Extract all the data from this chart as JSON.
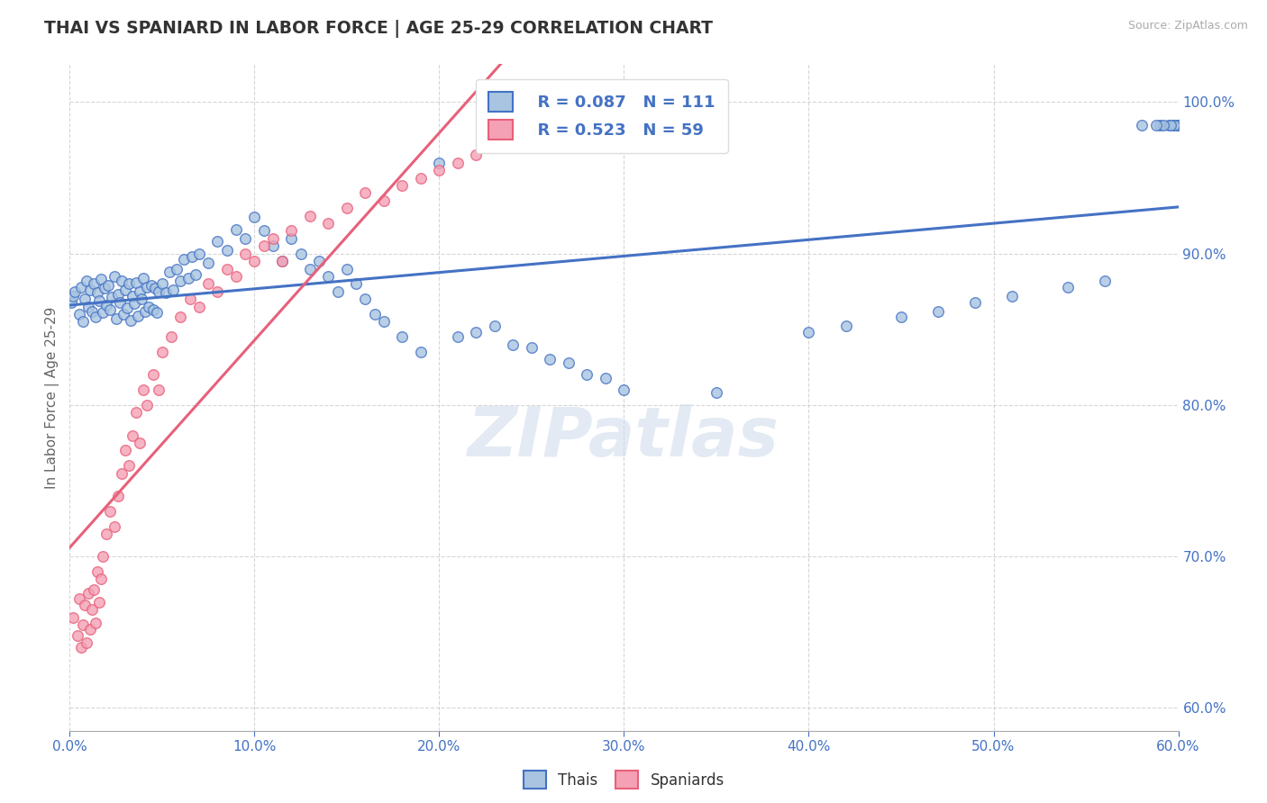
{
  "title": "THAI VS SPANIARD IN LABOR FORCE | AGE 25-29 CORRELATION CHART",
  "source": "Source: ZipAtlas.com",
  "ylabel_label": "In Labor Force | Age 25-29",
  "xmin": 0.0,
  "xmax": 0.6,
  "ymin": 0.585,
  "ymax": 1.025,
  "legend_r1": "R = 0.087",
  "legend_n1": "N = 111",
  "legend_r2": "R = 0.523",
  "legend_n2": "N = 59",
  "legend_label1": "Thais",
  "legend_label2": "Spaniards",
  "color_thai": "#a8c4e0",
  "color_spaniard": "#f4a0b5",
  "color_thai_line": "#4472c4",
  "color_spaniard_line": "#e8607a",
  "color_text_blue": "#4472c4",
  "watermark": "ZIPatlas",
  "thai_x": [
    0.001,
    0.002,
    0.003,
    0.005,
    0.006,
    0.007,
    0.008,
    0.009,
    0.01,
    0.011,
    0.012,
    0.013,
    0.014,
    0.015,
    0.016,
    0.017,
    0.018,
    0.019,
    0.02,
    0.021,
    0.022,
    0.023,
    0.024,
    0.025,
    0.026,
    0.027,
    0.028,
    0.029,
    0.03,
    0.031,
    0.032,
    0.033,
    0.034,
    0.035,
    0.036,
    0.037,
    0.038,
    0.039,
    0.04,
    0.041,
    0.042,
    0.043,
    0.044,
    0.045,
    0.046,
    0.047,
    0.048,
    0.05,
    0.052,
    0.054,
    0.056,
    0.058,
    0.06,
    0.062,
    0.064,
    0.066,
    0.068,
    0.07,
    0.075,
    0.08,
    0.085,
    0.09,
    0.095,
    0.1,
    0.105,
    0.11,
    0.115,
    0.12,
    0.125,
    0.13,
    0.135,
    0.14,
    0.145,
    0.15,
    0.155,
    0.16,
    0.165,
    0.17,
    0.18,
    0.19,
    0.2,
    0.21,
    0.22,
    0.23,
    0.24,
    0.25,
    0.26,
    0.27,
    0.28,
    0.29,
    0.3,
    0.35,
    0.4,
    0.42,
    0.45,
    0.47,
    0.49,
    0.51,
    0.54,
    0.56,
    0.58,
    0.59,
    0.595,
    0.598,
    0.599,
    0.6,
    0.6,
    0.598,
    0.596,
    0.592,
    0.588
  ],
  "thai_y": [
    0.868,
    0.872,
    0.875,
    0.86,
    0.878,
    0.855,
    0.87,
    0.882,
    0.865,
    0.876,
    0.862,
    0.88,
    0.858,
    0.874,
    0.869,
    0.883,
    0.861,
    0.877,
    0.866,
    0.879,
    0.863,
    0.871,
    0.885,
    0.857,
    0.873,
    0.868,
    0.882,
    0.86,
    0.876,
    0.864,
    0.88,
    0.856,
    0.872,
    0.867,
    0.881,
    0.859,
    0.875,
    0.87,
    0.884,
    0.862,
    0.878,
    0.865,
    0.879,
    0.863,
    0.877,
    0.861,
    0.875,
    0.88,
    0.874,
    0.888,
    0.876,
    0.89,
    0.882,
    0.896,
    0.884,
    0.898,
    0.886,
    0.9,
    0.894,
    0.908,
    0.902,
    0.916,
    0.91,
    0.924,
    0.915,
    0.905,
    0.895,
    0.91,
    0.9,
    0.89,
    0.895,
    0.885,
    0.875,
    0.89,
    0.88,
    0.87,
    0.86,
    0.855,
    0.845,
    0.835,
    0.96,
    0.845,
    0.848,
    0.852,
    0.84,
    0.838,
    0.83,
    0.828,
    0.82,
    0.818,
    0.81,
    0.808,
    0.848,
    0.852,
    0.858,
    0.862,
    0.868,
    0.872,
    0.878,
    0.882,
    0.985,
    0.985,
    0.985,
    0.985,
    0.985,
    0.985,
    0.985,
    0.985,
    0.985,
    0.985,
    0.985
  ],
  "spaniard_x": [
    0.002,
    0.004,
    0.005,
    0.006,
    0.007,
    0.008,
    0.009,
    0.01,
    0.011,
    0.012,
    0.013,
    0.014,
    0.015,
    0.016,
    0.017,
    0.018,
    0.02,
    0.022,
    0.024,
    0.026,
    0.028,
    0.03,
    0.032,
    0.034,
    0.036,
    0.038,
    0.04,
    0.042,
    0.045,
    0.048,
    0.05,
    0.055,
    0.06,
    0.065,
    0.07,
    0.075,
    0.08,
    0.085,
    0.09,
    0.095,
    0.1,
    0.105,
    0.11,
    0.115,
    0.12,
    0.13,
    0.14,
    0.15,
    0.16,
    0.17,
    0.18,
    0.19,
    0.2,
    0.21,
    0.22,
    0.23,
    0.24,
    0.25,
    0.26
  ],
  "spaniard_y": [
    0.66,
    0.648,
    0.672,
    0.64,
    0.655,
    0.668,
    0.643,
    0.676,
    0.652,
    0.665,
    0.678,
    0.656,
    0.69,
    0.67,
    0.685,
    0.7,
    0.715,
    0.73,
    0.72,
    0.74,
    0.755,
    0.77,
    0.76,
    0.78,
    0.795,
    0.775,
    0.81,
    0.8,
    0.82,
    0.81,
    0.835,
    0.845,
    0.858,
    0.87,
    0.865,
    0.88,
    0.875,
    0.89,
    0.885,
    0.9,
    0.895,
    0.905,
    0.91,
    0.895,
    0.915,
    0.925,
    0.92,
    0.93,
    0.94,
    0.935,
    0.945,
    0.95,
    0.955,
    0.96,
    0.965,
    0.97,
    0.975,
    0.98,
    0.985
  ]
}
